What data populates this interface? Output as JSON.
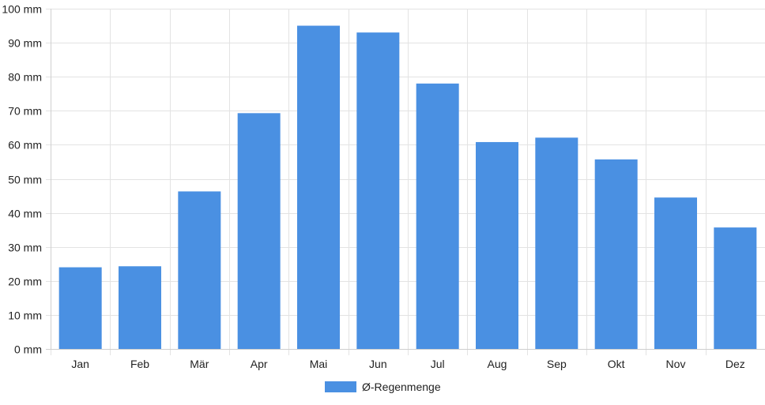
{
  "chart_data": {
    "type": "bar",
    "categories": [
      "Jan",
      "Feb",
      "Mär",
      "Apr",
      "Mai",
      "Jun",
      "Jul",
      "Aug",
      "Sep",
      "Okt",
      "Nov",
      "Dez"
    ],
    "series": [
      {
        "name": "Ø-Regenmenge",
        "values": [
          24,
          24.3,
          46.3,
          69.3,
          95,
          93,
          78,
          60.8,
          62.1,
          55.7,
          44.5,
          35.7
        ],
        "color": "#4a90e2"
      }
    ],
    "y_tick_labels": [
      "0 mm",
      "10 mm",
      "20 mm",
      "30 mm",
      "40 mm",
      "50 mm",
      "60 mm",
      "70 mm",
      "80 mm",
      "90 mm",
      "100 mm"
    ],
    "ylim": [
      0,
      100
    ],
    "y_step": 10,
    "y_unit": "mm",
    "grid": true,
    "legend_position": "bottom"
  }
}
